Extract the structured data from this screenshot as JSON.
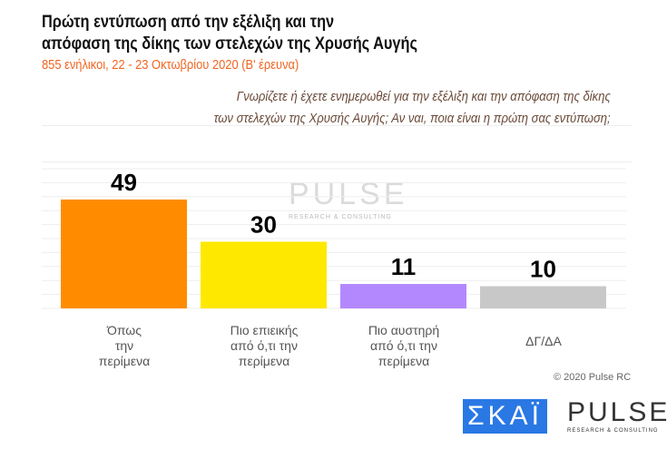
{
  "title_line1": "Πρώτη εντύπωση από την εξέλιξη και την",
  "title_line2": "απόφαση της δίκης των στελεχών της Χρυσής Αυγής",
  "subtitle": "855 ενήλικοι,  22 - 23 Οκτωβρίου  2020  (Β' έρευνα)",
  "question_line1": "Γνωρίζετε ή έχετε ενημερωθεί για την εξέλιξη και την απόφαση της δίκης",
  "question_line2": "των στελεχών της Χρυσής Αυγής; Αν ναι, ποια είναι η πρώτη σας εντύπωση;",
  "chart_data": {
    "type": "bar",
    "categories": [
      "Όπως την περίμενα",
      "Πιο επιεικής από ό,τι την περίμενα",
      "Πιο αυστηρή από ό,τι την περίμενα",
      "ΔΓ/ΔΑ"
    ],
    "category_lines": [
      [
        "Όπως",
        "την",
        "περίμενα"
      ],
      [
        "Πιο επιεικής",
        "από ό,τι την",
        "περίμενα"
      ],
      [
        "Πιο αυστηρή",
        "από ό,τι την",
        "περίμενα"
      ],
      [
        "ΔΓ/ΔΑ"
      ]
    ],
    "values": [
      49,
      30,
      11,
      10
    ],
    "colors": [
      "#ff8c00",
      "#ffe800",
      "#b388ff",
      "#c8c8c8"
    ],
    "grid": true
  },
  "copyright": "© 2020 Pulse RC",
  "logos": {
    "skai": "ΣΚΑΪ",
    "pulse": "PULSE",
    "pulse_sub": "RESEARCH & CONSULTING"
  }
}
